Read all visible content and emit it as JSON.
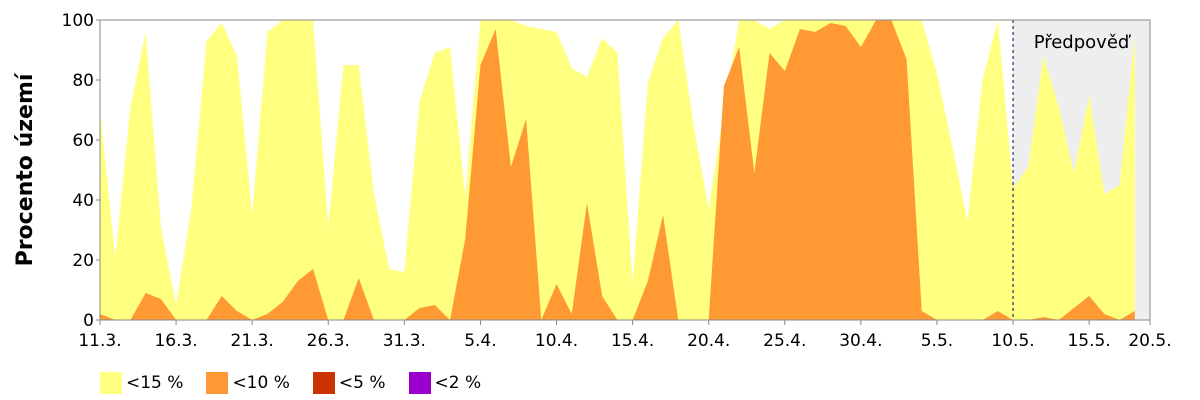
{
  "chart_data": {
    "type": "area",
    "ylabel": "Procento území",
    "ylim": [
      0,
      100
    ],
    "yticks": [
      "0",
      "20",
      "40",
      "60",
      "80",
      "100"
    ],
    "xtick_labels": [
      "11.3.",
      "16.3.",
      "21.3.",
      "26.3.",
      "31.3.",
      "5.4.",
      "10.4.",
      "15.4.",
      "20.4.",
      "25.4.",
      "30.4.",
      "5.5.",
      "10.5.",
      "15.5.",
      "20.5."
    ],
    "forecast_label": "Předpověď",
    "series": [
      {
        "name": "<15 %",
        "color": "#ffff80",
        "values": [
          70,
          21,
          71,
          96,
          31,
          5,
          37,
          93,
          99,
          88,
          35,
          96,
          100,
          100,
          100,
          31,
          85,
          85,
          42,
          17,
          16,
          73,
          89,
          91,
          41,
          100,
          100,
          100,
          98,
          97,
          96,
          84,
          81,
          94,
          89,
          12,
          79,
          94,
          100,
          65,
          37,
          70,
          100,
          100,
          97,
          100,
          100,
          100,
          100,
          100,
          100,
          100,
          100,
          100,
          100,
          82,
          58,
          33,
          80,
          100,
          44,
          51,
          88,
          71,
          49,
          75,
          42,
          45,
          95
        ]
      },
      {
        "name": "<10 %",
        "color": "#ff9933",
        "values": [
          2,
          0,
          0,
          9,
          7,
          0,
          0,
          0,
          8,
          3,
          0,
          2,
          6,
          13,
          17,
          0,
          0,
          14,
          0,
          0,
          0,
          4,
          5,
          0,
          27,
          85,
          97,
          51,
          67,
          0,
          12,
          2,
          39,
          8,
          0,
          0,
          13,
          35,
          0,
          0,
          0,
          78,
          91,
          49,
          89,
          83,
          97,
          96,
          99,
          98,
          91,
          100,
          100,
          87,
          3,
          0,
          0,
          0,
          0,
          3,
          0,
          0,
          1,
          0,
          4,
          8,
          2,
          0,
          3
        ]
      },
      {
        "name": "<5 %",
        "color": "#cc3300",
        "values": []
      },
      {
        "name": "<2 %",
        "color": "#9900cc",
        "values": []
      }
    ],
    "forecast_start_index": 60
  }
}
